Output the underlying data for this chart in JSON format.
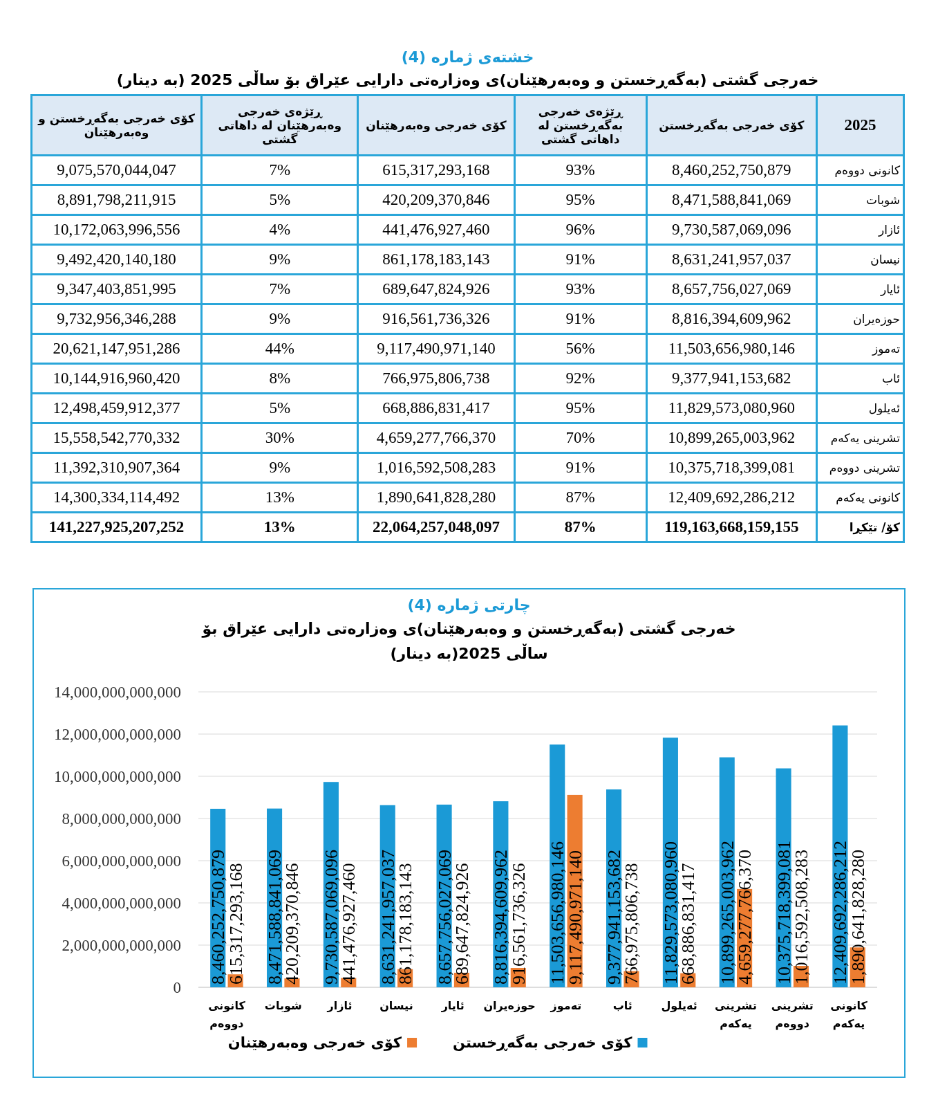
{
  "chart_data": [
    {
      "type": "other",
      "title": "خشتەی ژمارە (4)",
      "subtitle": "خەرجی گشتی (بەگەڕخستن و وەبەرهێنان)ی وەزارەتی دارایی عێراق بۆ ساڵی 2025 (بە دینار)",
      "xlabel": "2025",
      "categories": [
        "کانونی دووەم",
        "شوبات",
        "ئازار",
        "نیسان",
        "ئایار",
        "حوزەیران",
        "تەموز",
        "ئاب",
        "ئەیلول",
        "تشرینی یەکەم",
        "تشرینی دووەم",
        "کانونی یەکەم",
        "کۆ/ تێکڕا"
      ],
      "series": [
        {
          "name": "کۆی خەرجی بەگەڕخستن",
          "values": [
            8460252750879,
            8471588841069,
            9730587069096,
            8631241957037,
            8657756027069,
            8816394609962,
            11503656980146,
            9377941153682,
            11829573080960,
            10899265003962,
            10375718399081,
            12409692286212,
            119163668159155
          ],
          "value_labels": [
            "8,460,252,750,879",
            "8,471,588,841,069",
            "9,730,587,069,096",
            "8,631,241,957,037",
            "8,657,756,027,069",
            "8,816,394,609,962",
            "11,503,656,980,146",
            "9,377,941,153,682",
            "11,829,573,080,960",
            "10,899,265,003,962",
            "10,375,718,399,081",
            "12,409,692,286,212",
            "119,163,668,159,155"
          ]
        },
        {
          "name": "ڕێژەی خەرجی بەگەڕخستن لە داهاتی گشتی",
          "values": [
            93,
            95,
            96,
            91,
            93,
            91,
            56,
            92,
            95,
            70,
            91,
            87,
            87
          ],
          "value_labels": [
            "93%",
            "95%",
            "96%",
            "91%",
            "93%",
            "91%",
            "56%",
            "92%",
            "95%",
            "70%",
            "91%",
            "87%",
            "87%"
          ]
        },
        {
          "name": "کۆی خەرجی وەبەرهێنان",
          "values": [
            615317293168,
            420209370846,
            441476927460,
            861178183143,
            689647824926,
            916561736326,
            9117490971140,
            766975806738,
            668886831417,
            4659277766370,
            1016592508283,
            1890641828280,
            22064257048097
          ],
          "value_labels": [
            "615,317,293,168",
            "420,209,370,846",
            "441,476,927,460",
            "861,178,183,143",
            "689,647,824,926",
            "916,561,736,326",
            "9,117,490,971,140",
            "766,975,806,738",
            "668,886,831,417",
            "4,659,277,766,370",
            "1,016,592,508,283",
            "1,890,641,828,280",
            "22,064,257,048,097"
          ]
        },
        {
          "name": "ڕێژەی خەرجی وەبەرهێنان لە داهاتی گشتی",
          "values": [
            7,
            5,
            4,
            9,
            7,
            9,
            44,
            8,
            5,
            30,
            9,
            13,
            13
          ],
          "value_labels": [
            "7%",
            "5%",
            "4%",
            "9%",
            "7%",
            "9%",
            "44%",
            "8%",
            "5%",
            "30%",
            "9%",
            "13%",
            "13%"
          ]
        },
        {
          "name": "کۆی خەرجی بەگەڕخستن و وەبەرهێنان",
          "values": [
            9075570044047,
            8891798211915,
            10172063996556,
            9492420140180,
            9347403851995,
            9732956346288,
            20621147951286,
            10144916960420,
            12498459912377,
            15558542770332,
            11392310907364,
            14300334114492,
            141227925207252
          ],
          "value_labels": [
            "9,075,570,044,047",
            "8,891,798,211,915",
            "10,172,063,996,556",
            "9,492,420,140,180",
            "9,347,403,851,995",
            "9,732,956,346,288",
            "20,621,147,951,286",
            "10,144,916,960,420",
            "12,498,459,912,377",
            "15,558,542,770,332",
            "11,392,310,907,364",
            "14,300,334,114,492",
            "141,227,925,207,252"
          ]
        }
      ]
    },
    {
      "type": "bar",
      "title": "چارتی ژمارە (4)",
      "subtitle": "خەرجی گشتی (بەگەڕخستن و وەبەرهێنان)ی وەزارەتی دارایی عێراق بۆ ساڵی 2025(بە دینار)",
      "categories": [
        "کانونی دووەم",
        "شوبات",
        "ئازار",
        "نیسان",
        "ئایار",
        "حوزەیران",
        "تەموز",
        "ئاب",
        "ئەیلول",
        "تشرینی یەکەم",
        "تشرینی دووەم",
        "کانونی یەکەم"
      ],
      "ylim": [
        0,
        14000000000000
      ],
      "yticks": [
        0,
        {
          "value": 2000000000000,
          "label": "2,000,000,000,000"
        },
        {
          "value": 4000000000000,
          "label": "4,000,000,000,000"
        },
        {
          "value": 6000000000000,
          "label": "6,000,000,000,000"
        },
        {
          "value": 8000000000000,
          "label": "8,000,000,000,000"
        },
        {
          "value": 10000000000000,
          "label": "10,000,000,000,000"
        },
        {
          "value": 12000000000000,
          "label": "12,000,000,000,000"
        },
        {
          "value": 14000000000000,
          "label": "14,000,000,000,000"
        }
      ],
      "grid": "y",
      "legend": "bottom",
      "series": [
        {
          "name": "کۆی خەرجی بەگەڕخستن",
          "color": "#1b9ad6",
          "values": [
            8460252750879,
            8471588841069,
            9730587069096,
            8631241957037,
            8657756027069,
            8816394609962,
            11503656980146,
            9377941153682,
            11829573080960,
            10899265003962,
            10375718399081,
            12409692286212
          ],
          "value_labels": [
            "8,460,252,750,879",
            "8,471,588,841,069",
            "9,730,587,069,096",
            "8,631,241,957,037",
            "8,657,756,027,069",
            "8,816,394,609,962",
            "11,503,656,980,146",
            "9,377,941,153,682",
            "11,829,573,080,960",
            "10,899,265,003,962",
            "10,375,718,399,081",
            "12,409,692,286,212"
          ]
        },
        {
          "name": "کۆی خەرجی وەبەرهێنان",
          "color": "#ed7d31",
          "values": [
            615317293168,
            420209370846,
            441476927460,
            861178183143,
            689647824926,
            916561736326,
            9117490971140,
            766975806738,
            668886831417,
            4659277766370,
            1016592508283,
            1890641828280
          ],
          "value_labels": [
            "615,317,293,168",
            "420,209,370,846",
            "441,476,927,460",
            "861,178,183,143",
            "689,647,824,926",
            "916,561,736,326",
            "9,117,490,971,140",
            "766,975,806,738",
            "668,886,831,417",
            "4,659,277,766,370",
            "1,016,592,508,283",
            "1,890,641,828,280"
          ]
        }
      ]
    }
  ]
}
